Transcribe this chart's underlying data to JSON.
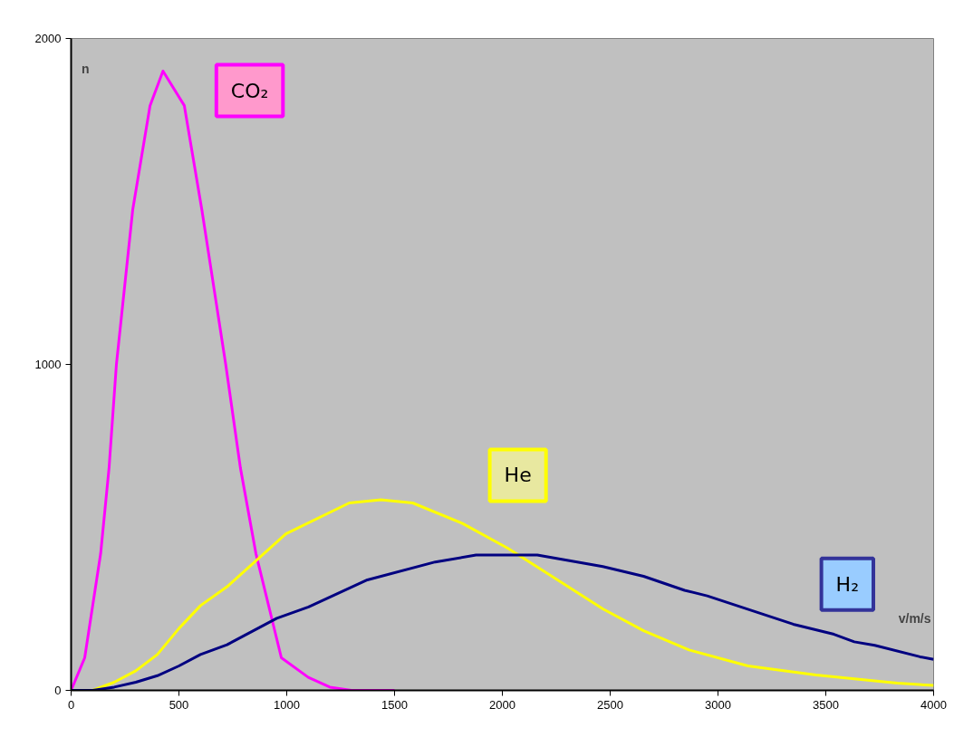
{
  "chart_data": {
    "type": "line",
    "xlabel": "v/m/s",
    "ylabel": "n",
    "xlim": [
      0,
      4000
    ],
    "ylim": [
      0,
      2000
    ],
    "xticks": [
      0,
      500,
      1000,
      1500,
      2000,
      2500,
      3000,
      3500,
      4000
    ],
    "yticks": [
      0,
      1000,
      2000
    ],
    "grid": false,
    "marker": "none",
    "line_style": "solid",
    "series": [
      {
        "name": "CO₂",
        "color": "#ff00ff",
        "x": [
          0,
          63,
          137,
          176,
          210,
          286,
          366,
          426,
          525,
          606,
          717,
          785,
          857,
          975,
          1100,
          1200,
          1300,
          1500
        ],
        "values": [
          0,
          100,
          420,
          683,
          1000,
          1476,
          1794,
          1900,
          1794,
          1476,
          1000,
          683,
          420,
          100,
          40,
          10,
          0,
          0
        ]
      },
      {
        "name": "He",
        "color": "#ffff00",
        "x": [
          0,
          100,
          200,
          300,
          400,
          500,
          600,
          723,
          996,
          1290,
          1437,
          1584,
          1815,
          2025,
          2256,
          2466,
          2655,
          2866,
          3139,
          3454,
          3622,
          3832,
          4000
        ],
        "values": [
          0,
          0,
          25,
          60,
          110,
          190,
          260,
          318,
          480,
          575,
          585,
          575,
          512,
          436,
          339,
          250,
          183,
          124,
          75,
          47,
          36,
          22,
          15
        ]
      },
      {
        "name": "H₂",
        "color": "#000080",
        "x": [
          0,
          100,
          200,
          300,
          400,
          500,
          600,
          723,
          954,
          1101,
          1374,
          1689,
          1878,
          2162,
          2466,
          2655,
          2845,
          2950,
          3349,
          3538,
          3632,
          3727,
          3937,
          4000
        ],
        "values": [
          0,
          0,
          10,
          25,
          45,
          75,
          110,
          140,
          221,
          256,
          339,
          394,
          415,
          415,
          380,
          350,
          307,
          290,
          203,
          172,
          149,
          138,
          103,
          95
        ]
      }
    ]
  }
}
